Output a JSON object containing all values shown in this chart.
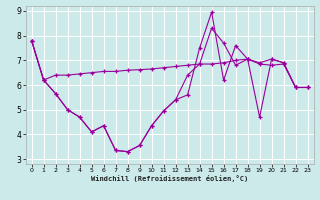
{
  "xlabel": "Windchill (Refroidissement éolien,°C)",
  "bg_color": "#cceaea",
  "line_color": "#990099",
  "grid_color": "#ffffff",
  "xlim": [
    -0.5,
    23.5
  ],
  "ylim": [
    2.8,
    9.2
  ],
  "xticks": [
    0,
    1,
    2,
    3,
    4,
    5,
    6,
    7,
    8,
    9,
    10,
    11,
    12,
    13,
    14,
    15,
    16,
    17,
    18,
    19,
    20,
    21,
    22,
    23
  ],
  "yticks": [
    3,
    4,
    5,
    6,
    7,
    8,
    9
  ],
  "line1_x": [
    0,
    1,
    2,
    3,
    4,
    5,
    6,
    7,
    8,
    9,
    10,
    11,
    12,
    13,
    14,
    15,
    16,
    17,
    18,
    19,
    20,
    21,
    22,
    23
  ],
  "line1_y": [
    7.8,
    6.2,
    6.4,
    6.4,
    6.45,
    6.5,
    6.55,
    6.55,
    6.6,
    6.62,
    6.65,
    6.7,
    6.75,
    6.8,
    6.85,
    6.85,
    6.9,
    7.0,
    7.05,
    6.85,
    6.8,
    6.85,
    5.9,
    5.9
  ],
  "line2_x": [
    0,
    1,
    2,
    3,
    4,
    5,
    6,
    7,
    8,
    9,
    10,
    11,
    12,
    13,
    14,
    15,
    16,
    17,
    18,
    19,
    20,
    21,
    22,
    23
  ],
  "line2_y": [
    7.8,
    6.2,
    5.65,
    5.0,
    4.7,
    4.1,
    4.35,
    3.35,
    3.3,
    3.55,
    4.35,
    4.95,
    5.4,
    5.6,
    7.5,
    8.95,
    6.2,
    7.6,
    7.05,
    4.7,
    7.05,
    6.9,
    5.9,
    5.9
  ],
  "line3_x": [
    0,
    1,
    2,
    3,
    4,
    5,
    6,
    7,
    8,
    9,
    10,
    11,
    12,
    13,
    14,
    15,
    16,
    17,
    18,
    19,
    20,
    21,
    22,
    23
  ],
  "line3_y": [
    7.8,
    6.2,
    5.65,
    5.0,
    4.7,
    4.1,
    4.35,
    3.35,
    3.3,
    3.55,
    4.35,
    4.95,
    5.4,
    6.4,
    6.85,
    8.3,
    7.7,
    6.8,
    7.05,
    6.9,
    7.05,
    6.9,
    5.9,
    5.9
  ]
}
